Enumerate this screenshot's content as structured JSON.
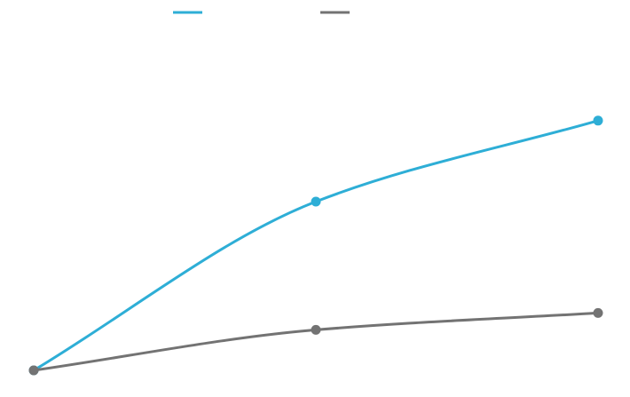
{
  "chart_data": {
    "type": "line",
    "categories": [
      null,
      null,
      null
    ],
    "ylim": [
      0,
      100
    ],
    "series": [
      {
        "color": "#2eaed6",
        "values": [
          0,
          50,
          74
        ]
      },
      {
        "color": "#737373",
        "values": [
          0,
          12,
          17
        ]
      }
    ]
  }
}
